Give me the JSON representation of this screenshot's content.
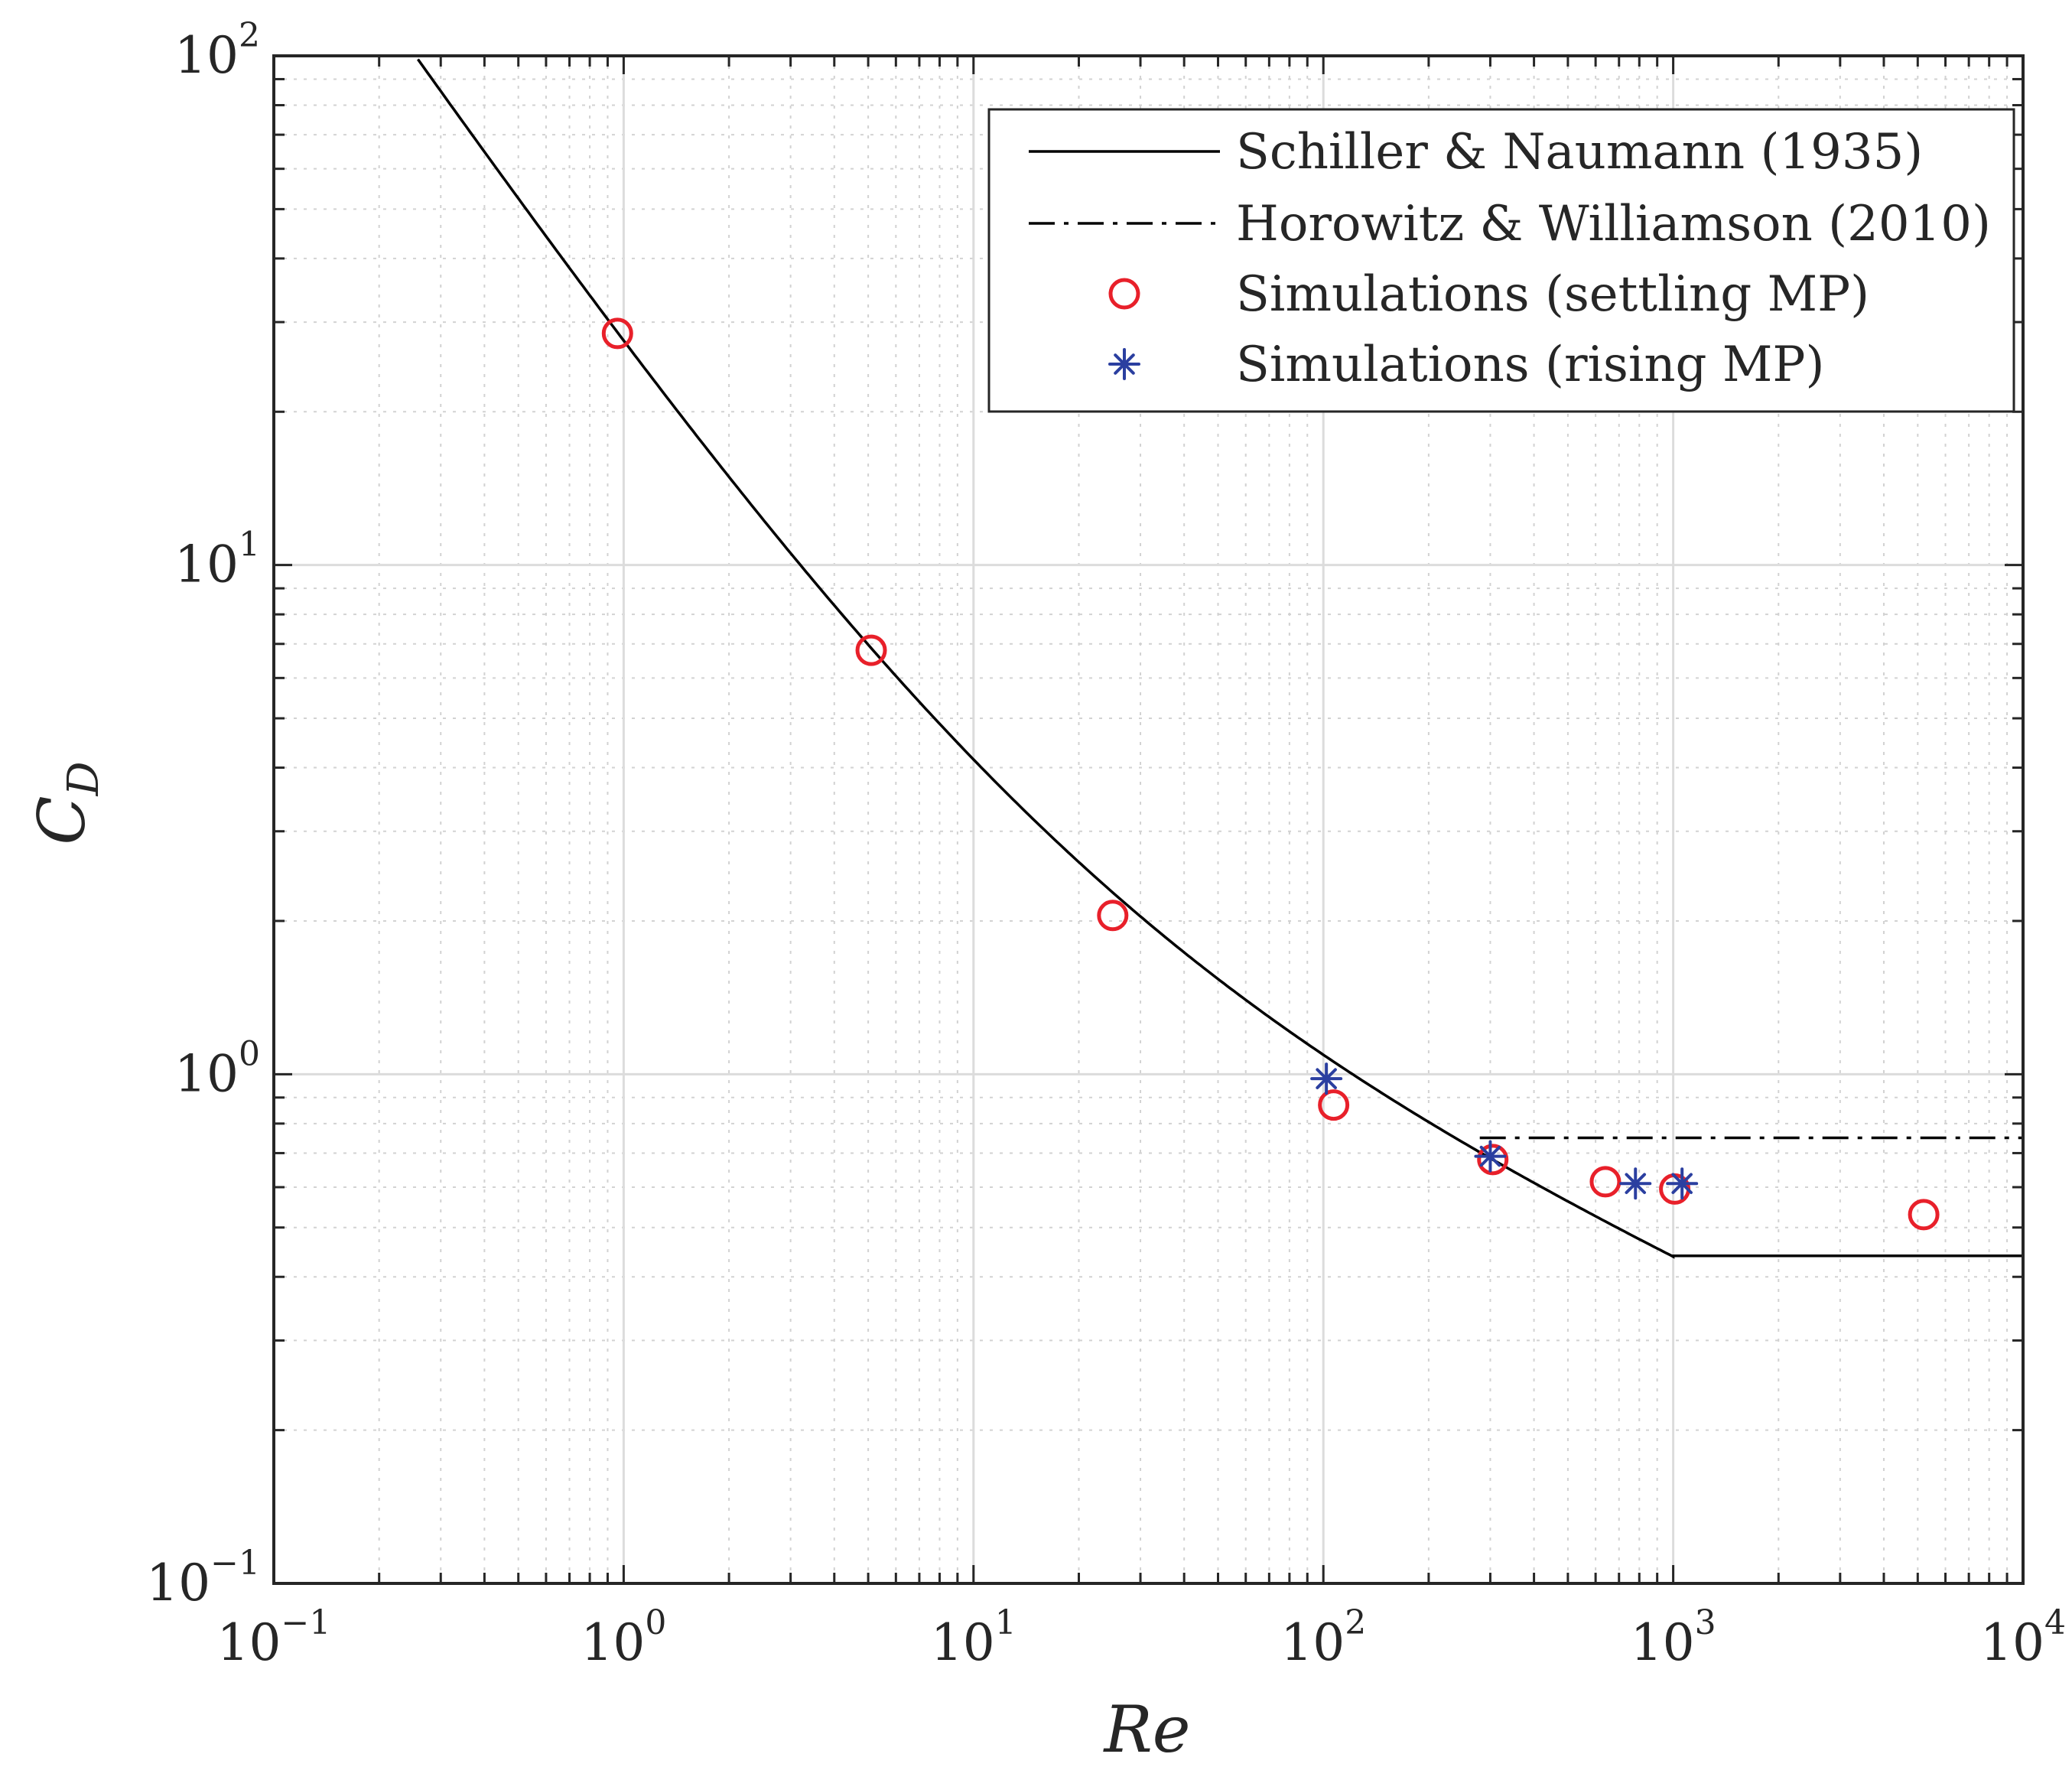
{
  "chart_data": {
    "type": "scatter",
    "title": "",
    "xlabel": "Re",
    "ylabel": {
      "main": "C",
      "sub": "D"
    },
    "xscale": "log",
    "yscale": "log",
    "xlim": [
      0.1,
      10000
    ],
    "ylim": [
      0.1,
      100
    ],
    "grid": {
      "major": true,
      "minor": true
    },
    "legend_position": "top-right",
    "x_ticks": [
      {
        "base": "10",
        "exp": "−1",
        "value": 0.1
      },
      {
        "base": "10",
        "exp": "0",
        "value": 1
      },
      {
        "base": "10",
        "exp": "1",
        "value": 10
      },
      {
        "base": "10",
        "exp": "2",
        "value": 100
      },
      {
        "base": "10",
        "exp": "3",
        "value": 1000
      },
      {
        "base": "10",
        "exp": "4",
        "value": 10000
      }
    ],
    "y_ticks": [
      {
        "base": "10",
        "exp": "−1",
        "value": 0.1
      },
      {
        "base": "10",
        "exp": "0",
        "value": 1
      },
      {
        "base": "10",
        "exp": "1",
        "value": 10
      },
      {
        "base": "10",
        "exp": "2",
        "value": 100
      }
    ],
    "series": [
      {
        "name": "Schiller & Naumann (1935)",
        "kind": "line",
        "style": "solid",
        "color": "#000000",
        "formula_domain": [
          0.2,
          1000
        ],
        "plateau_value": 0.44,
        "plateau_range": [
          1000,
          10000
        ]
      },
      {
        "name": "Horowitz & Williamson (2010)",
        "kind": "line",
        "style": "dash-dot",
        "color": "#000000",
        "x": [
          280,
          10000
        ],
        "y": [
          0.75,
          0.75
        ]
      },
      {
        "name": "Simulations (settling MP)",
        "kind": "marker",
        "marker": "circle",
        "color": "#e8202a",
        "x": [
          0.96,
          5.1,
          25,
          107,
          305,
          640,
          1010,
          5200
        ],
        "y": [
          28.5,
          6.8,
          2.05,
          0.87,
          0.68,
          0.615,
          0.595,
          0.53
        ]
      },
      {
        "name": "Simulations (rising MP)",
        "kind": "marker",
        "marker": "asterisk",
        "color": "#2b3fa0",
        "x": [
          102,
          300,
          780,
          1060
        ],
        "y": [
          0.98,
          0.69,
          0.61,
          0.61
        ]
      }
    ]
  }
}
